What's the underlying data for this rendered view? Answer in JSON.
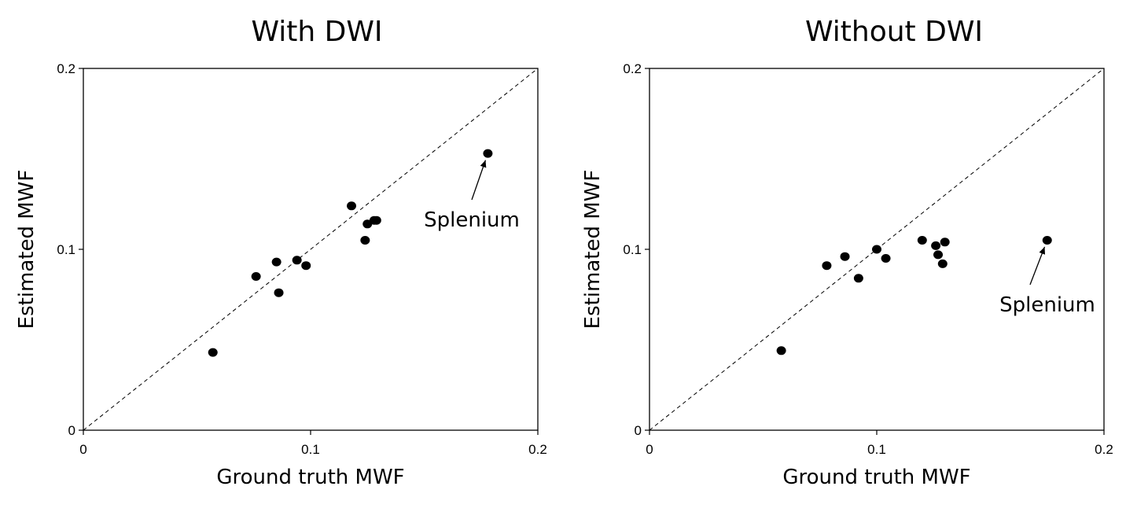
{
  "chart_data": [
    {
      "type": "scatter",
      "title": "With DWI",
      "xlabel": "Ground truth MWF",
      "ylabel": "Estimated MWF",
      "xlim": [
        0,
        0.2
      ],
      "ylim": [
        0,
        0.2
      ],
      "xticks": [
        0,
        0.1,
        0.2
      ],
      "yticks": [
        0,
        0.1,
        0.2
      ],
      "xtick_labels": [
        "0",
        "0.1",
        "0.2"
      ],
      "ytick_labels": [
        "0",
        "0.1",
        "0.2"
      ],
      "identity_line": true,
      "grid": false,
      "legend": "none",
      "points": [
        {
          "x": 0.057,
          "y": 0.043
        },
        {
          "x": 0.076,
          "y": 0.085
        },
        {
          "x": 0.085,
          "y": 0.093
        },
        {
          "x": 0.086,
          "y": 0.076
        },
        {
          "x": 0.094,
          "y": 0.094
        },
        {
          "x": 0.098,
          "y": 0.091
        },
        {
          "x": 0.118,
          "y": 0.124
        },
        {
          "x": 0.124,
          "y": 0.105
        },
        {
          "x": 0.125,
          "y": 0.114
        },
        {
          "x": 0.128,
          "y": 0.116
        },
        {
          "x": 0.129,
          "y": 0.116
        },
        {
          "x": 0.178,
          "y": 0.153
        }
      ],
      "annotation": {
        "text": "Splenium",
        "point_x": 0.178,
        "point_y": 0.153
      }
    },
    {
      "type": "scatter",
      "title": "Without DWI",
      "xlabel": "Ground truth MWF",
      "ylabel": "Estimated MWF",
      "xlim": [
        0,
        0.2
      ],
      "ylim": [
        0,
        0.2
      ],
      "xticks": [
        0,
        0.1,
        0.2
      ],
      "yticks": [
        0,
        0.1,
        0.2
      ],
      "xtick_labels": [
        "0",
        "0.1",
        "0.2"
      ],
      "ytick_labels": [
        "0",
        "0.1",
        "0.2"
      ],
      "identity_line": true,
      "grid": false,
      "legend": "none",
      "points": [
        {
          "x": 0.058,
          "y": 0.044
        },
        {
          "x": 0.078,
          "y": 0.091
        },
        {
          "x": 0.086,
          "y": 0.096
        },
        {
          "x": 0.092,
          "y": 0.084
        },
        {
          "x": 0.1,
          "y": 0.1
        },
        {
          "x": 0.104,
          "y": 0.095
        },
        {
          "x": 0.12,
          "y": 0.105
        },
        {
          "x": 0.126,
          "y": 0.102
        },
        {
          "x": 0.127,
          "y": 0.097
        },
        {
          "x": 0.129,
          "y": 0.092
        },
        {
          "x": 0.13,
          "y": 0.104
        },
        {
          "x": 0.175,
          "y": 0.105
        }
      ],
      "annotation": {
        "text": "Splenium",
        "point_x": 0.175,
        "point_y": 0.105
      }
    }
  ]
}
